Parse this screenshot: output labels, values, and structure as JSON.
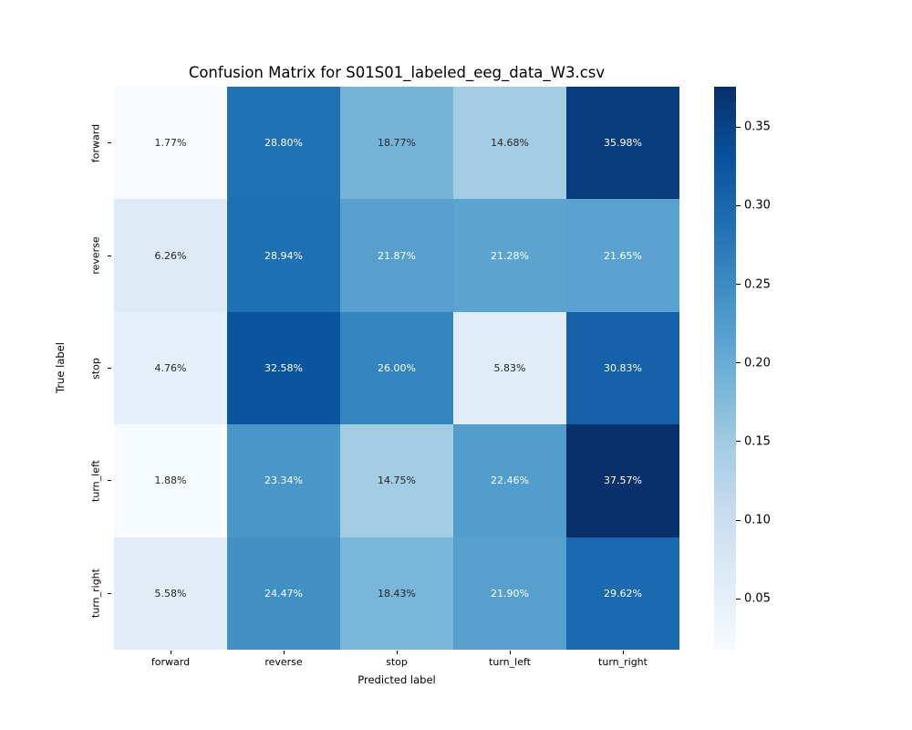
{
  "figure": {
    "background_color": "#ffffff"
  },
  "chart_data": {
    "type": "heatmap",
    "title": "Confusion Matrix for S01S01_labeled_eeg_data_W3.csv",
    "xlabel": "Predicted label",
    "ylabel": "True label",
    "categories": [
      "forward",
      "reverse",
      "stop",
      "turn_left",
      "turn_right"
    ],
    "values_percent": [
      [
        1.77,
        28.8,
        18.77,
        14.68,
        35.98
      ],
      [
        6.26,
        28.94,
        21.87,
        21.28,
        21.65
      ],
      [
        4.76,
        32.58,
        26.0,
        5.83,
        30.83
      ],
      [
        1.88,
        23.34,
        14.75,
        22.46,
        37.57
      ],
      [
        5.58,
        24.47,
        18.43,
        21.9,
        29.62
      ]
    ],
    "cell_label_format": "percent-2dp",
    "colormap": "Blues",
    "colormap_stops": [
      "#f7fbff",
      "#deebf7",
      "#c6dbef",
      "#9ecae1",
      "#6baed6",
      "#4292c6",
      "#2171b5",
      "#08519c",
      "#08306b"
    ],
    "colorbar": {
      "position": "right",
      "ticks": [
        0.05,
        0.1,
        0.15,
        0.2,
        0.25,
        0.3,
        0.35
      ]
    },
    "annotation_colors": {
      "dark_text": "#262626",
      "light_text": "#ffffff"
    },
    "grid": false,
    "legend_position": "none"
  }
}
